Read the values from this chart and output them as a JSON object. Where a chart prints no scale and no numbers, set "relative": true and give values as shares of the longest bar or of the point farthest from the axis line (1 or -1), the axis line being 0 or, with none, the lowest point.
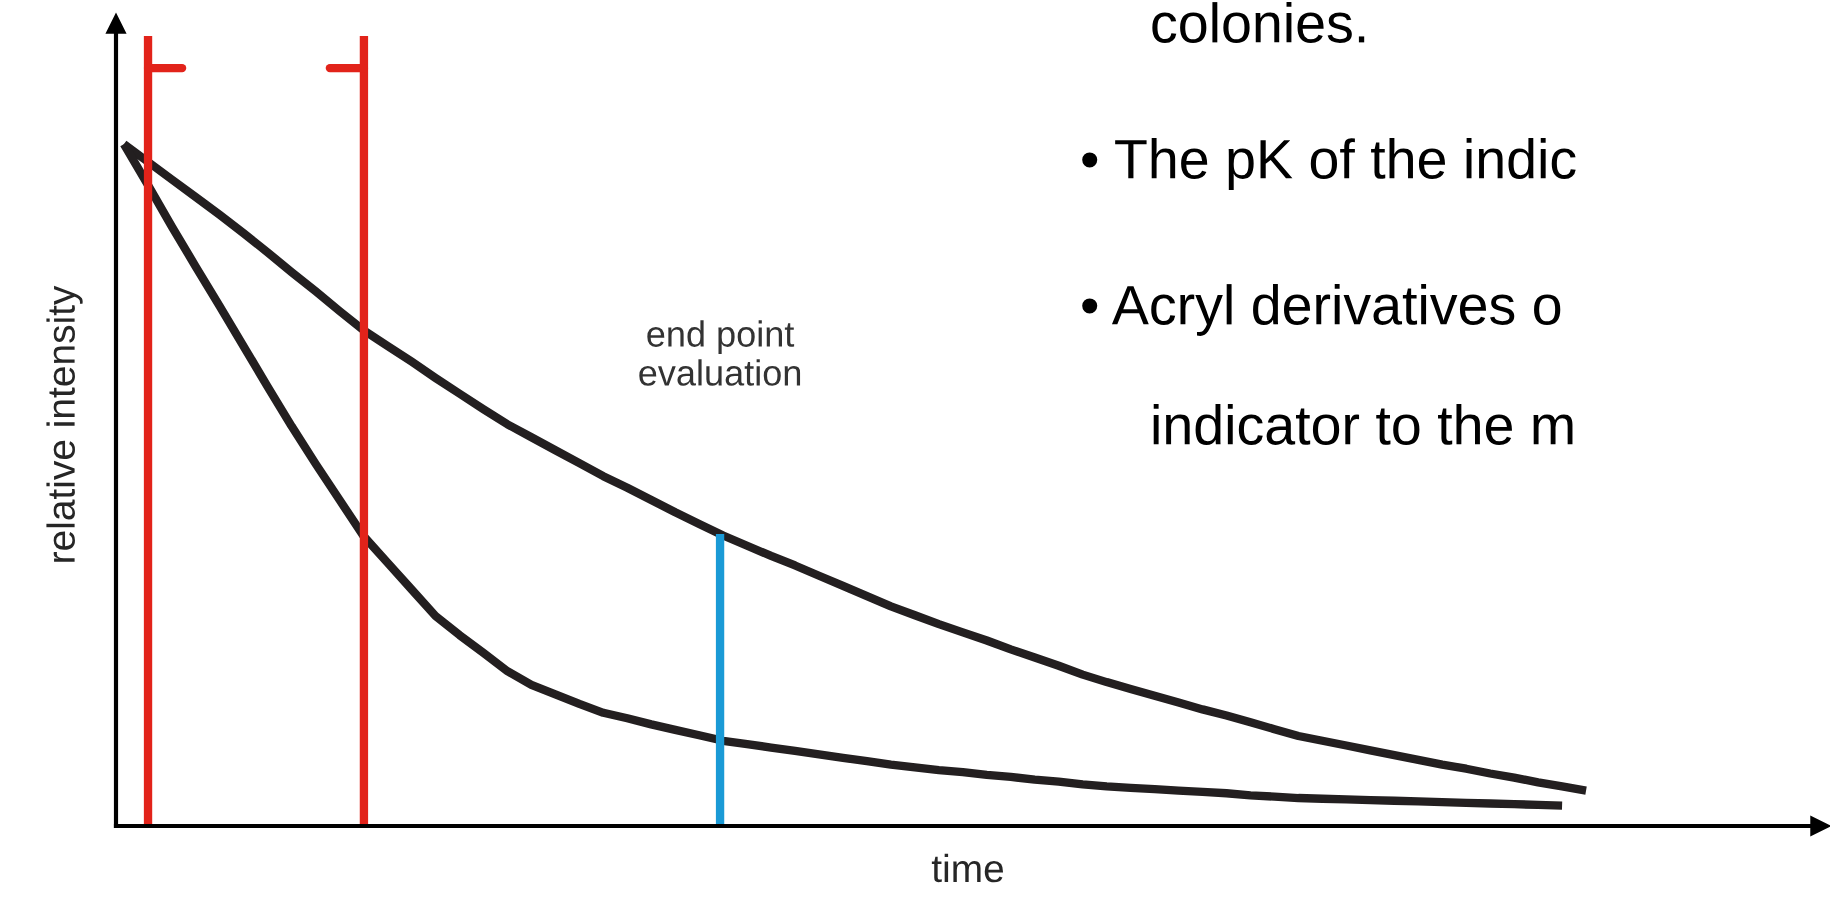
{
  "chart_data": {
    "type": "line",
    "relative": true,
    "xlabel": "time",
    "ylabel": "relative intensity",
    "legend": false,
    "marker": "none",
    "line_style": "solid",
    "categories": [
      null,
      null,
      null,
      null,
      null,
      null,
      null,
      null,
      null,
      null,
      null,
      null,
      null,
      null,
      null,
      null,
      null,
      null,
      null,
      null,
      null,
      null,
      null,
      null,
      null,
      null,
      null,
      null,
      null,
      null,
      null,
      null,
      null,
      null,
      null,
      null,
      null,
      null,
      null,
      null,
      null,
      null,
      null,
      null,
      null,
      null,
      null,
      null,
      null,
      null,
      null,
      null,
      null,
      null,
      null,
      null,
      null,
      null,
      null,
      null,
      null,
      null
    ],
    "series": [
      {
        "color": "#231f20",
        "values": [
          1.0,
          0.974,
          0.948,
          0.922,
          0.896,
          0.869,
          0.841,
          0.812,
          0.784,
          0.755,
          0.727,
          0.704,
          0.681,
          0.657,
          0.634,
          0.611,
          0.589,
          0.57,
          0.551,
          0.532,
          0.513,
          0.496,
          0.478,
          0.46,
          0.443,
          0.426,
          0.411,
          0.396,
          0.382,
          0.367,
          0.352,
          0.337,
          0.322,
          0.309,
          0.296,
          0.284,
          0.272,
          0.259,
          0.247,
          0.235,
          0.222,
          0.211,
          0.201,
          0.191,
          0.181,
          0.171,
          0.162,
          0.152,
          0.142,
          0.132,
          0.125,
          0.118,
          0.111,
          0.104,
          0.097,
          0.09,
          0.084,
          0.077,
          0.071,
          0.064,
          0.058,
          0.052
        ]
      },
      {
        "color": "#231f20",
        "values": [
          1.0,
          0.94,
          0.879,
          0.82,
          0.762,
          0.703,
          0.644,
          0.586,
          0.531,
          0.478,
          0.425,
          0.386,
          0.347,
          0.308,
          0.28,
          0.254,
          0.227,
          0.207,
          0.193,
          0.179,
          0.166,
          0.158,
          0.149,
          0.141,
          0.133,
          0.125,
          0.12,
          0.115,
          0.11,
          0.105,
          0.1,
          0.095,
          0.09,
          0.086,
          0.082,
          0.079,
          0.075,
          0.072,
          0.068,
          0.065,
          0.061,
          0.058,
          0.056,
          0.054,
          0.052,
          0.05,
          0.048,
          0.045,
          0.043,
          0.041,
          0.04,
          0.039,
          0.038,
          0.037,
          0.036,
          0.035,
          0.034,
          0.033,
          0.032,
          0.031,
          0.03,
          null
        ]
      }
    ],
    "annotations": [
      "end point\nevaluation",
      "colonies.",
      "• The pK of the indic",
      "• Acryl derivatives o",
      "indicator to the m"
    ]
  }
}
